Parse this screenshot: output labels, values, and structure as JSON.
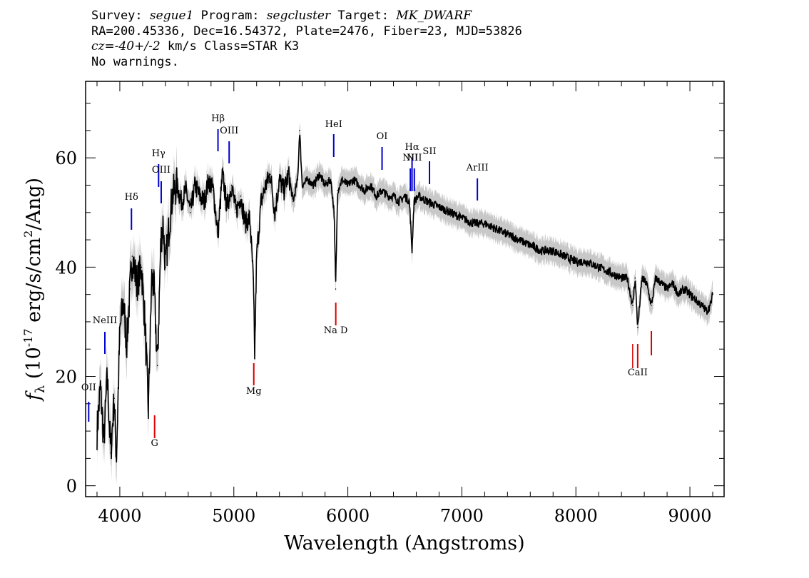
{
  "header": {
    "survey_label": "Survey:",
    "survey": "segue1",
    "program_label": "Program:",
    "program": "segcluster",
    "target_label": "Target:",
    "target": "MK_DWARF",
    "line2": "RA=200.45336, Dec=16.54372, Plate=2476, Fiber=23, MJD=53826",
    "cz_label": "cz=",
    "cz_value": "-40+/-2",
    "cz_unit": "km/s",
    "class_text": "Class=STAR K3",
    "warnings": "No warnings."
  },
  "chart_data": {
    "type": "line",
    "xlabel": "Wavelength (Angstroms)",
    "ylabel": "f_λ (10^-17 erg/s/cm^2/Ang)",
    "xlim": [
      3700,
      9300
    ],
    "ylim": [
      -2,
      74
    ],
    "x_ticks": [
      4000,
      5000,
      6000,
      7000,
      8000,
      9000
    ],
    "y_ticks": [
      0,
      20,
      40,
      60
    ],
    "series": [
      {
        "color": "#000000",
        "x": [
          3800,
          3830,
          3860,
          3890,
          3920,
          3950,
          3970,
          4000,
          4030,
          4060,
          4090,
          4110,
          4150,
          4190,
          4220,
          4250,
          4280,
          4300,
          4330,
          4360,
          4380,
          4400,
          4430,
          4460,
          4500,
          4540,
          4580,
          4620,
          4660,
          4700,
          4740,
          4780,
          4820,
          4861,
          4900,
          4940,
          4980,
          5020,
          5060,
          5100,
          5140,
          5170,
          5183,
          5200,
          5240,
          5280,
          5320,
          5360,
          5400,
          5440,
          5480,
          5520,
          5560,
          5577,
          5600,
          5650,
          5700,
          5750,
          5800,
          5850,
          5880,
          5893,
          5910,
          5950,
          6000,
          6050,
          6100,
          6150,
          6200,
          6250,
          6300,
          6350,
          6400,
          6450,
          6500,
          6540,
          6563,
          6580,
          6620,
          6700,
          6800,
          6900,
          7000,
          7100,
          7200,
          7300,
          7400,
          7500,
          7600,
          7700,
          7800,
          7900,
          8000,
          8100,
          8200,
          8300,
          8400,
          8450,
          8498,
          8520,
          8542,
          8580,
          8620,
          8662,
          8700,
          8750,
          8800,
          8850,
          8900,
          8950,
          9000,
          9050,
          9100,
          9150,
          9180,
          9200
        ],
        "values": [
          10,
          18,
          8,
          20,
          6,
          16,
          5,
          28,
          34,
          26,
          36,
          42,
          37,
          40,
          30,
          14,
          38,
          36,
          22,
          45,
          48,
          40,
          47,
          53,
          55,
          52,
          54,
          50,
          55,
          53,
          52,
          56,
          54,
          46,
          57,
          51,
          55,
          50,
          53,
          48,
          49,
          38,
          24,
          42,
          52,
          55,
          57,
          50,
          56,
          54,
          57,
          52,
          56,
          65,
          55,
          56,
          55,
          57,
          55,
          56,
          50,
          36,
          54,
          56,
          55,
          56,
          55,
          54,
          55,
          53,
          54,
          53,
          53,
          52,
          53,
          52,
          43,
          52,
          53,
          52,
          51,
          50,
          49,
          48,
          48,
          47,
          46,
          45,
          44,
          43,
          43,
          42,
          41,
          41,
          40,
          39,
          38,
          38,
          33,
          38,
          29,
          38,
          37,
          33,
          38,
          37,
          36,
          37,
          35,
          36,
          35,
          34,
          33,
          32,
          33,
          35
        ]
      }
    ],
    "annotations": [
      {
        "label": "OII",
        "x": 3727,
        "color": "#0000cc"
      },
      {
        "label": "NeIII",
        "x": 3869,
        "color": "#0000cc"
      },
      {
        "label": "Hδ",
        "x": 4102,
        "color": "#0000cc"
      },
      {
        "label": "Hγ",
        "x": 4340,
        "color": "#0000cc"
      },
      {
        "label": "OIII",
        "x": 4363,
        "color": "#0000cc"
      },
      {
        "label": "Hβ",
        "x": 4861,
        "color": "#0000cc"
      },
      {
        "label": "OIII",
        "x": 4959,
        "color": "#0000cc"
      },
      {
        "label": "HeI",
        "x": 5876,
        "color": "#0000cc"
      },
      {
        "label": "OI",
        "x": 6300,
        "color": "#0000cc"
      },
      {
        "label": "NII",
        "x": 6548,
        "color": "#0000cc"
      },
      {
        "label": "Hα",
        "x": 6563,
        "color": "#0000cc"
      },
      {
        "label": "NII",
        "x": 6583,
        "color": "#0000cc"
      },
      {
        "label": "SII",
        "x": 6716,
        "color": "#0000cc"
      },
      {
        "label": "ArIII",
        "x": 7136,
        "color": "#0000cc"
      },
      {
        "label": "G",
        "x": 4305,
        "color": "#dd0000"
      },
      {
        "label": "Mg",
        "x": 5175,
        "color": "#dd0000"
      },
      {
        "label": "Na D",
        "x": 5894,
        "color": "#dd0000"
      },
      {
        "label": "CaII",
        "x": 8542,
        "color": "#dd0000"
      }
    ]
  }
}
